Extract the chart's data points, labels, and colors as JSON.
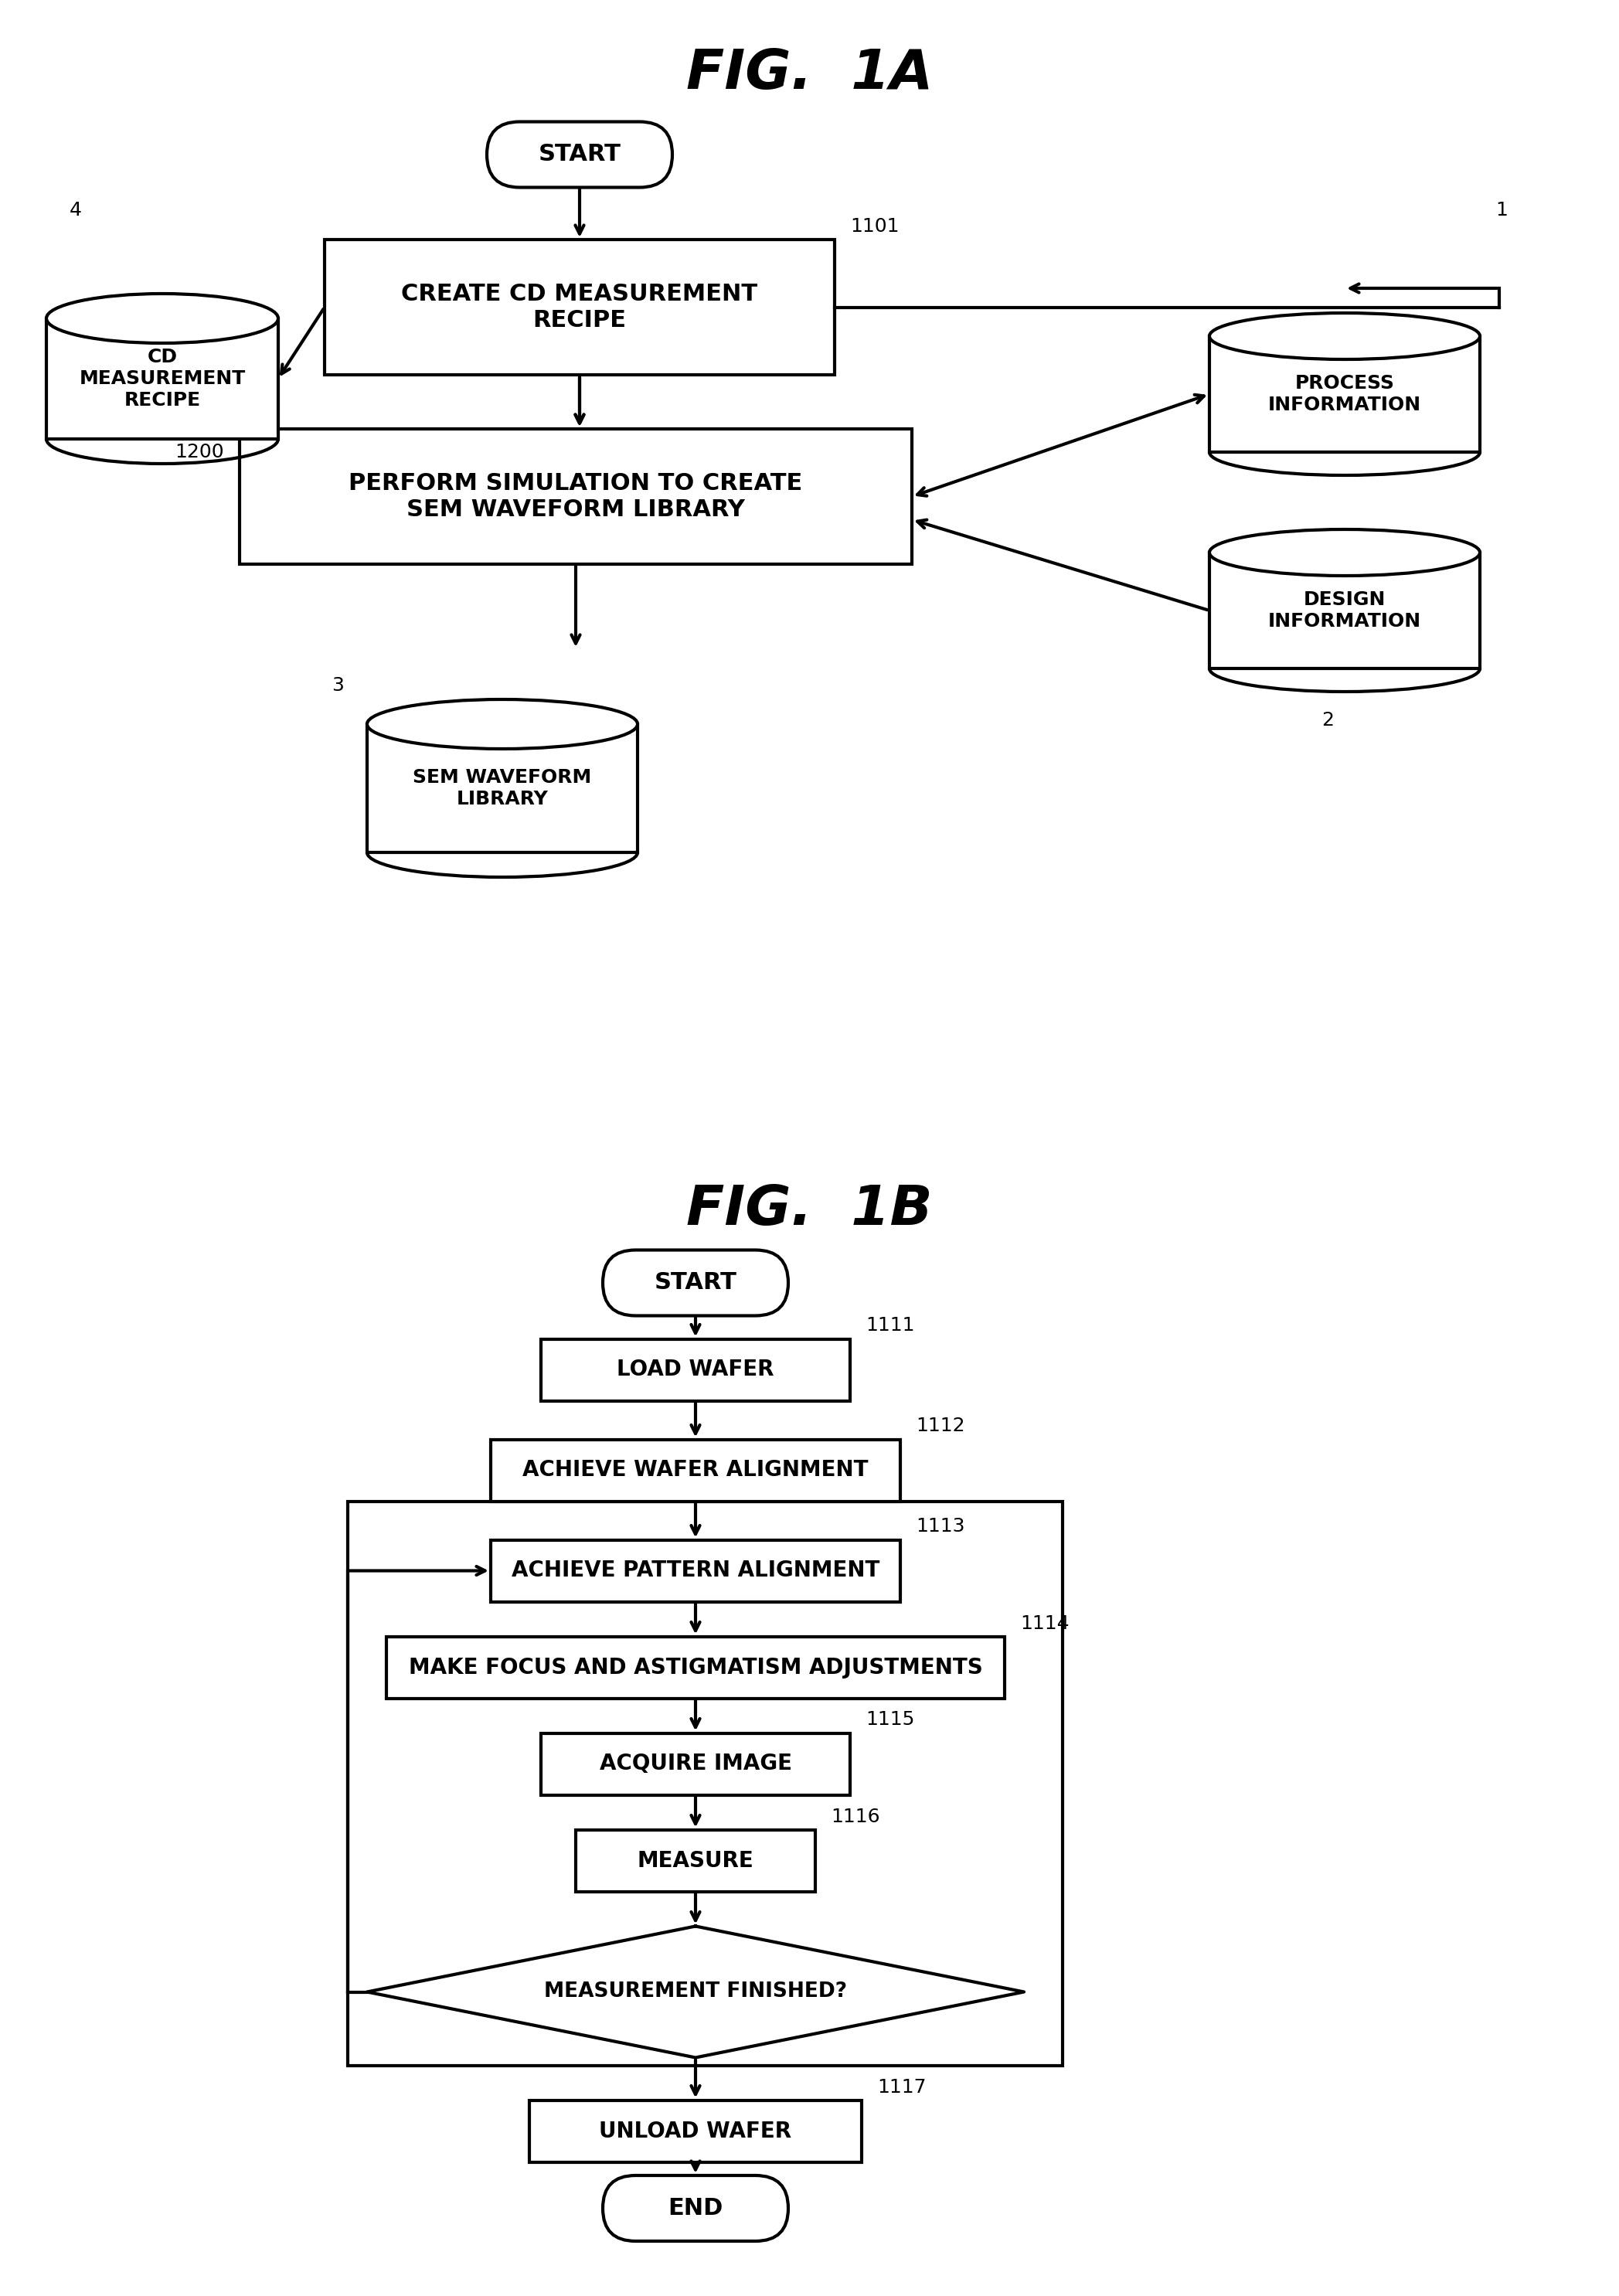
{
  "fig_title_1a": "FIG.  1A",
  "fig_title_1b": "FIG.  1B",
  "background_color": "#ffffff",
  "fig1a": {
    "start_label": "START",
    "box1_label": "CREATE CD MEASUREMENT\nRECIPE",
    "box1_number": "1101",
    "box2_label": "PERFORM SIMULATION TO CREATE\nSEM WAVEFORM LIBRARY",
    "box2_number": "1200",
    "cyl1_label": "CD\nMEASUREMENT\nRECIPE",
    "cyl1_number": "4",
    "cyl2_label": "SEM WAVEFORM\nLIBRARY",
    "cyl2_number": "3",
    "cyl3_label": "PROCESS\nINFORMATION",
    "cyl3_number": "1",
    "cyl4_label": "DESIGN\nINFORMATION",
    "cyl4_number": "2"
  },
  "fig1b": {
    "start_label": "START",
    "end_label": "END",
    "box1_label": "LOAD WAFER",
    "box1_number": "1111",
    "box2_label": "ACHIEVE WAFER ALIGNMENT",
    "box2_number": "1112",
    "box3_label": "ACHIEVE PATTERN ALIGNMENT",
    "box3_number": "1113",
    "box4_label": "MAKE FOCUS AND ASTIGMATISM ADJUSTMENTS",
    "box4_number": "1114",
    "box5_label": "ACQUIRE IMAGE",
    "box5_number": "1115",
    "box6_label": "MEASURE",
    "box6_number": "1116",
    "diamond_label": "MEASUREMENT FINISHED?",
    "box7_label": "UNLOAD WAFER",
    "box7_number": "1117"
  }
}
